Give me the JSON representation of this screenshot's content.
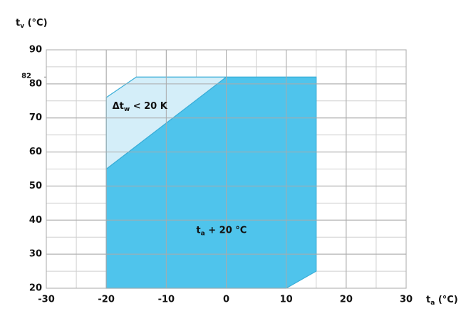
{
  "chart_data": {
    "type": "polygon",
    "y_label": {
      "main": "t",
      "sub": "v",
      "unit": "(°C)"
    },
    "x_label": {
      "main": "t",
      "sub": "a",
      "unit": "(°C)"
    },
    "xlim": [
      -30,
      30
    ],
    "xticks": [
      -30,
      -20,
      -10,
      0,
      10,
      20,
      30
    ],
    "ylim": [
      20,
      90
    ],
    "yticks": [
      20,
      30,
      40,
      50,
      60,
      70,
      80,
      90
    ],
    "extra_yticks": [
      {
        "value": 82,
        "label": "82"
      }
    ],
    "grid": true,
    "minor_grid_step": 5,
    "polygons": [
      {
        "color": "#4fc4ec",
        "x": [
          -20,
          -20,
          0,
          15,
          15,
          10
        ],
        "values": [
          20,
          55,
          82,
          82,
          25,
          20
        ]
      },
      {
        "color": "#d4eef9",
        "x": [
          -20,
          -20,
          -15,
          0
        ],
        "values": [
          55,
          76,
          82,
          82
        ]
      }
    ],
    "annotations": [
      {
        "main": "Δt",
        "sub": "w",
        "rest": " < 20 K"
      },
      {
        "main": "t",
        "sub": "a",
        "rest": " + 20 °C"
      }
    ]
  }
}
